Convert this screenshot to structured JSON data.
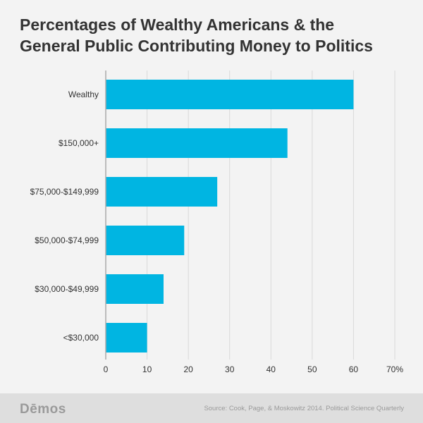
{
  "title_lines": [
    "Percentages of Wealthy Americans & the",
    "General Public Contributing Money to Politics"
  ],
  "footer": {
    "logo": "Dēmos",
    "source": "Source: Cook, Page, & Moskowitz 2014. Political Science Quarterly"
  },
  "colors": {
    "bar": "#00b5e2",
    "title": "#333333",
    "grid": "#d9d9d9",
    "axis": "#aaaaaa",
    "background": "#f3f3f3"
  },
  "chart_data": {
    "type": "bar",
    "orientation": "horizontal",
    "title": "Percentages of Wealthy Americans & the General Public Contributing Money to Politics",
    "categories": [
      "Wealthy",
      "$150,000+",
      "$75,000-$149,999",
      "$50,000-$74,999",
      "$30,000-$49,999",
      "<$30,000"
    ],
    "values": [
      60,
      44,
      27,
      19,
      14,
      10
    ],
    "xlim": [
      0,
      70
    ],
    "xticks": [
      "0",
      "10",
      "20",
      "30",
      "40",
      "50",
      "60",
      "70%"
    ],
    "grid": true,
    "xlabel": "",
    "ylabel": ""
  }
}
